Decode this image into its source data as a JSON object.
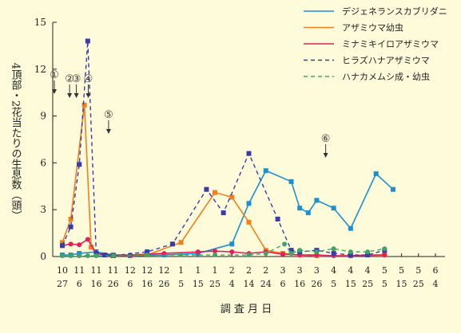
{
  "chart_data": {
    "type": "line",
    "title": "",
    "ylabel": "4頂部・2花当たりの生息数（頭）",
    "xlabel": "調 査 月 日",
    "ylim": [
      0,
      15
    ],
    "yticks": [
      0,
      3,
      6,
      9,
      12,
      15
    ],
    "grid": false,
    "legend_position": "top-right",
    "x": [
      {
        "top": "10",
        "bottom": "27"
      },
      {
        "top": "11",
        "bottom": "6"
      },
      {
        "top": "11",
        "bottom": "16"
      },
      {
        "top": "11",
        "bottom": "26"
      },
      {
        "top": "12",
        "bottom": "6"
      },
      {
        "top": "12",
        "bottom": "16"
      },
      {
        "top": "12",
        "bottom": "26"
      },
      {
        "top": "1",
        "bottom": "5"
      },
      {
        "top": "1",
        "bottom": "15"
      },
      {
        "top": "1",
        "bottom": "25"
      },
      {
        "top": "2",
        "bottom": "4"
      },
      {
        "top": "2",
        "bottom": "14"
      },
      {
        "top": "2",
        "bottom": "24"
      },
      {
        "top": "3",
        "bottom": "6"
      },
      {
        "top": "3",
        "bottom": "16"
      },
      {
        "top": "3",
        "bottom": "26"
      },
      {
        "top": "4",
        "bottom": "5"
      },
      {
        "top": "4",
        "bottom": "15"
      },
      {
        "top": "4",
        "bottom": "25"
      },
      {
        "top": "5",
        "bottom": "5"
      },
      {
        "top": "5",
        "bottom": "15"
      },
      {
        "top": "5",
        "bottom": "25"
      },
      {
        "top": "6",
        "bottom": "4"
      }
    ],
    "series": [
      {
        "name": "デジェネランスカブリダニ",
        "color": "#1e8fd0",
        "dash": false,
        "marker": "square",
        "points": [
          [
            0,
            0.1
          ],
          [
            0.5,
            0.1
          ],
          [
            1,
            0.2
          ],
          [
            2,
            0.3
          ],
          [
            3,
            0.1
          ],
          [
            4,
            0.05
          ],
          [
            6,
            0.1
          ],
          [
            8,
            0.2
          ],
          [
            10,
            0.8
          ],
          [
            11,
            3.4
          ],
          [
            12,
            5.5
          ],
          [
            13.5,
            4.8
          ],
          [
            14,
            3.1
          ],
          [
            14.5,
            2.8
          ],
          [
            15,
            3.6
          ],
          [
            16,
            3.1
          ],
          [
            17,
            1.8
          ],
          [
            18.5,
            5.3
          ],
          [
            19.5,
            4.3
          ]
        ]
      },
      {
        "name": "アザミウマ幼虫",
        "color": "#f07f1e",
        "dash": false,
        "marker": "square",
        "points": [
          [
            0,
            0.9
          ],
          [
            0.5,
            2.4
          ],
          [
            1.3,
            9.7
          ],
          [
            1.7,
            0.6
          ],
          [
            2,
            0.2
          ],
          [
            2.5,
            0.1
          ],
          [
            3,
            0.05
          ],
          [
            5,
            0.1
          ],
          [
            7,
            0.9
          ],
          [
            9,
            4.1
          ],
          [
            10,
            3.8
          ],
          [
            11,
            2.2
          ],
          [
            12,
            0.4
          ],
          [
            13,
            0.2
          ],
          [
            14,
            0.1
          ],
          [
            15,
            0.05
          ],
          [
            17,
            0.05
          ],
          [
            19,
            0.1
          ]
        ]
      },
      {
        "name": "ミナミキイロアザミウマ",
        "color": "#e0205a",
        "dash": false,
        "marker": "circle",
        "points": [
          [
            0,
            0.7
          ],
          [
            0.5,
            0.8
          ],
          [
            1,
            0.75
          ],
          [
            1.5,
            1.1
          ],
          [
            2,
            0.2
          ],
          [
            3,
            0.1
          ],
          [
            4,
            0.1
          ],
          [
            6,
            0.2
          ],
          [
            8,
            0.3
          ],
          [
            9,
            0.35
          ],
          [
            10,
            0.3
          ],
          [
            11,
            0.2
          ],
          [
            12,
            0.3
          ],
          [
            13,
            0.15
          ],
          [
            14,
            0.1
          ],
          [
            15,
            0.1
          ],
          [
            16,
            0.05
          ],
          [
            17,
            0.05
          ],
          [
            18,
            0.1
          ],
          [
            19,
            0.1
          ]
        ]
      },
      {
        "name": "ヒラズハナアザミウマ",
        "color": "#3a3aa8",
        "dash": true,
        "marker": "square",
        "points": [
          [
            0,
            0.7
          ],
          [
            0.5,
            1.9
          ],
          [
            1,
            5.9
          ],
          [
            1.5,
            13.8
          ],
          [
            2,
            0.2
          ],
          [
            2.5,
            0.1
          ],
          [
            3,
            0.05
          ],
          [
            5,
            0.3
          ],
          [
            6.5,
            0.8
          ],
          [
            8.5,
            4.3
          ],
          [
            9.5,
            2.8
          ],
          [
            11,
            6.6
          ],
          [
            12.7,
            2.4
          ],
          [
            13.5,
            0.4
          ],
          [
            14,
            0.3
          ],
          [
            15,
            0.4
          ],
          [
            16,
            0.2
          ],
          [
            17,
            0.1
          ],
          [
            18,
            0.1
          ],
          [
            19,
            0.4
          ]
        ]
      },
      {
        "name": "ハナカメムシ成・幼虫",
        "color": "#3fa36b",
        "dash": true,
        "marker": "circle",
        "points": [
          [
            0,
            0.05
          ],
          [
            0.5,
            0.05
          ],
          [
            1,
            0.05
          ],
          [
            1.5,
            0.05
          ],
          [
            2,
            0.05
          ],
          [
            3,
            0.05
          ],
          [
            5,
            0.1
          ],
          [
            7,
            0.1
          ],
          [
            9,
            0.1
          ],
          [
            11,
            0.1
          ],
          [
            12,
            0.2
          ],
          [
            13.1,
            0.8
          ],
          [
            13.5,
            0.2
          ],
          [
            14,
            0.4
          ],
          [
            15,
            0.3
          ],
          [
            16,
            0.5
          ],
          [
            17,
            0.3
          ],
          [
            18,
            0.3
          ],
          [
            19,
            0.5
          ]
        ]
      }
    ],
    "annotations": [
      {
        "label": "①",
        "x": 0
      },
      {
        "label": "②",
        "x": 0.9
      },
      {
        "label": "③",
        "x": 1.3
      },
      {
        "label": "④",
        "x": 2.0
      },
      {
        "label": "⑤",
        "x": 3.2
      },
      {
        "label": "⑥",
        "x": 16.0
      }
    ]
  }
}
